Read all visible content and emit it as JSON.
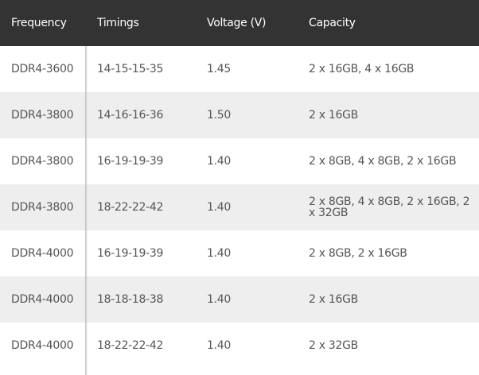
{
  "table": {
    "headers": [
      "Frequency",
      "Timings",
      "Voltage (V)",
      "Capacity"
    ],
    "rows": [
      [
        "DDR4-3600",
        "14-15-15-35",
        "1.45",
        "2 x 16GB, 4 x 16GB"
      ],
      [
        "DDR4-3800",
        "14-16-16-36",
        "1.50",
        "2 x 16GB"
      ],
      [
        "DDR4-3800",
        "16-19-19-39",
        "1.40",
        "2 x 8GB, 4 x 8GB, 2 x 16GB"
      ],
      [
        "DDR4-3800",
        "18-22-22-42",
        "1.40",
        "2 x 8GB, 4 x 8GB, 2 x 16GB, 2 x 32GB"
      ],
      [
        "DDR4-4000",
        "16-19-19-39",
        "1.40",
        "2 x 8GB, 2 x 16GB"
      ],
      [
        "DDR4-4000",
        "18-18-18-38",
        "1.40",
        "2 x 16GB"
      ],
      [
        "DDR4-4000",
        "18-22-22-42",
        "1.40",
        "2 x 32GB"
      ]
    ]
  },
  "colors": {
    "header_bg": "#333333",
    "alt_row_bg": "#eeeeee",
    "text": "#555555"
  }
}
